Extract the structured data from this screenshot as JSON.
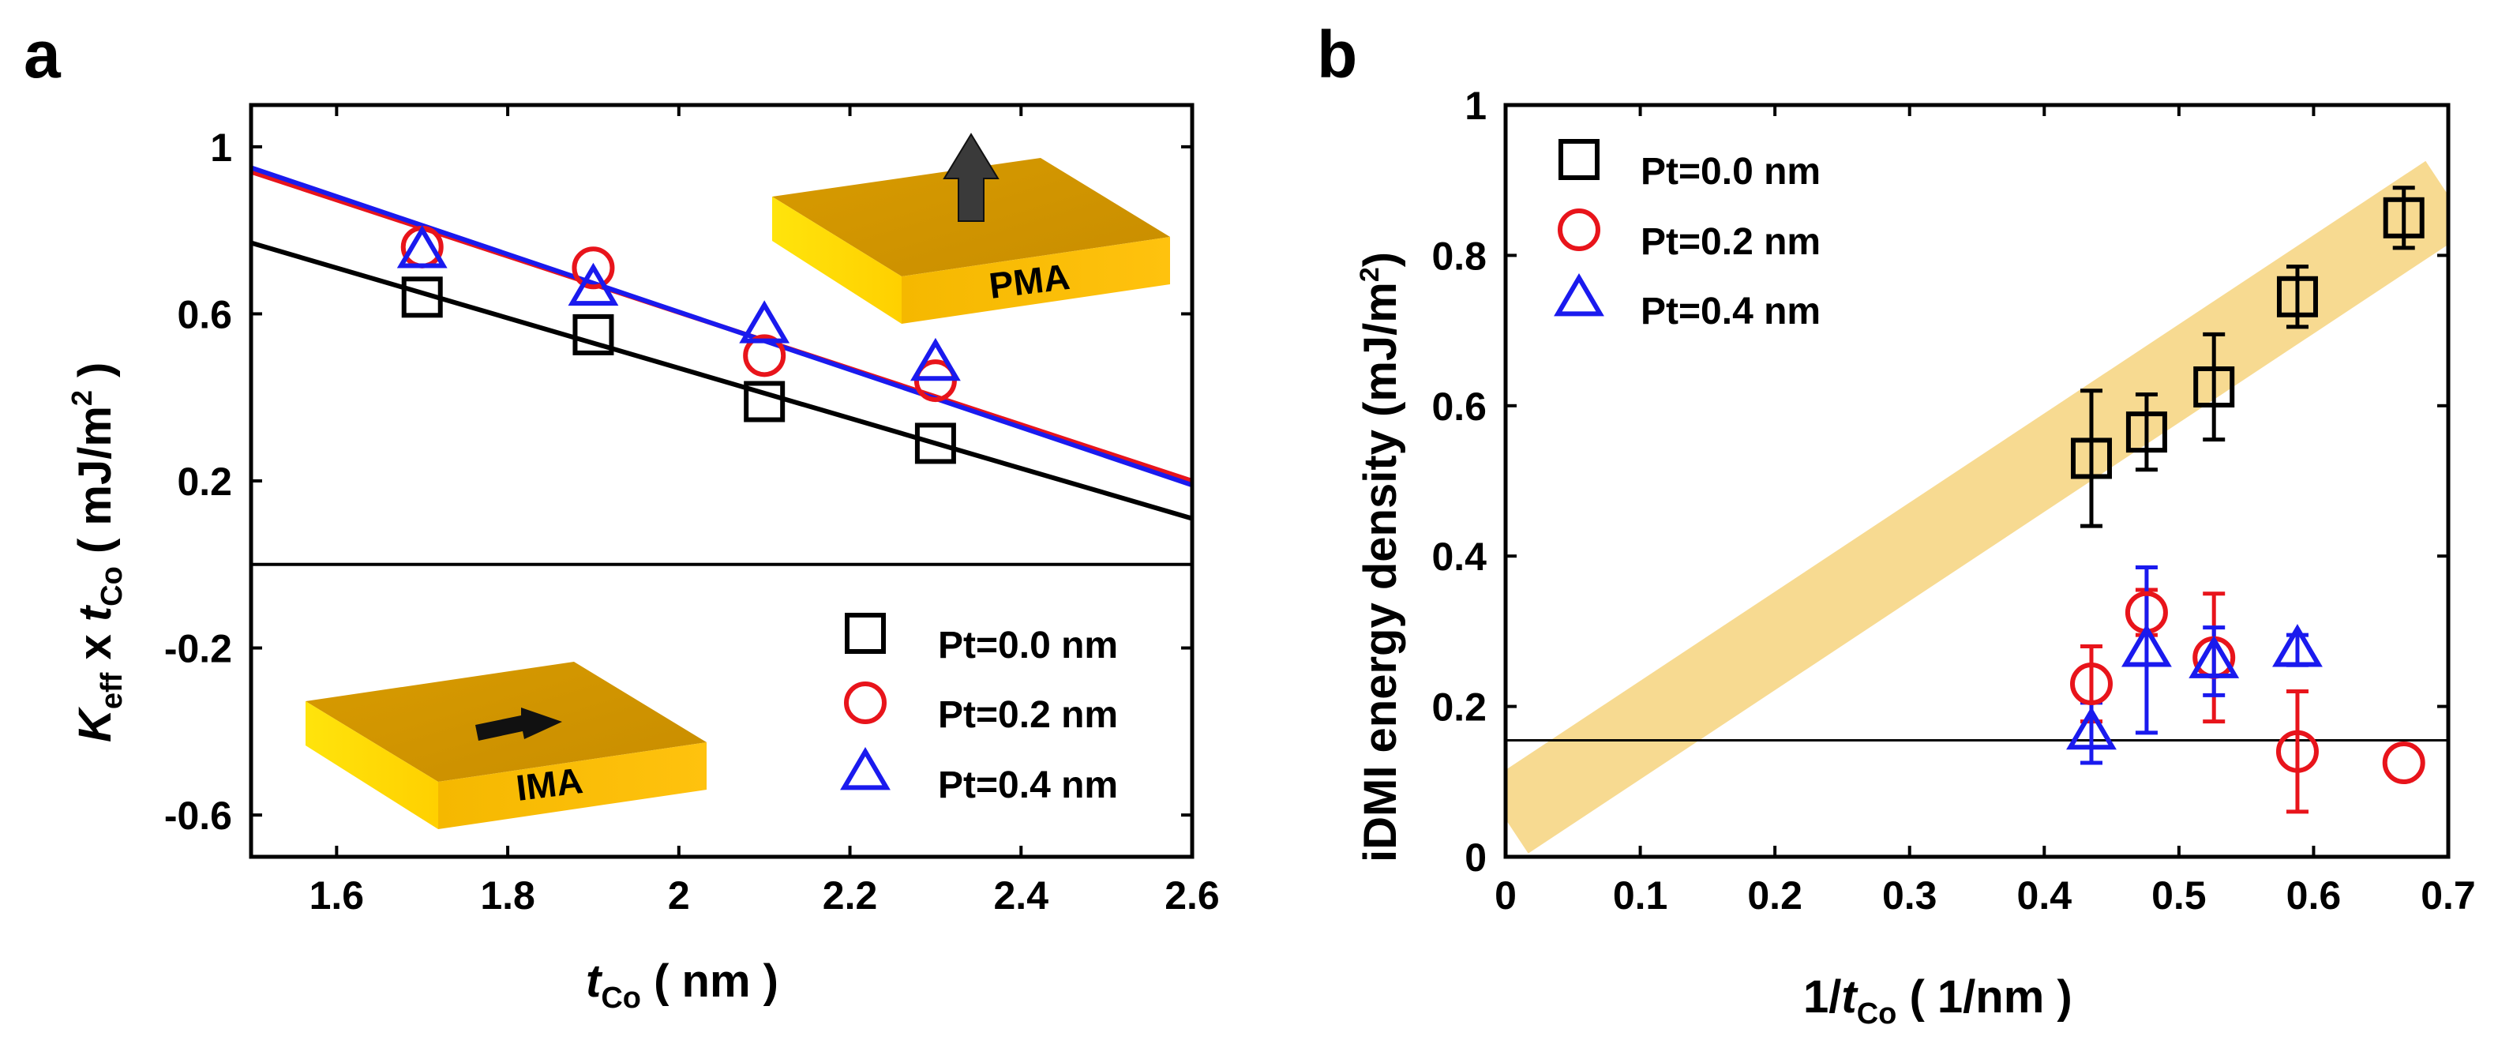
{
  "chart_data": [
    {
      "panel": "a",
      "type": "scatter",
      "title": "",
      "xlabel": {
        "main": "t",
        "sub": "Co",
        "unit": " ( nm )"
      },
      "ylabel": {
        "main": "K",
        "sub1": "eff",
        "mid": " x ",
        "main2": "t",
        "sub2": "Co",
        "unit": " ( mJ/m",
        "sup": "2",
        "end": " )"
      },
      "xlim": [
        1.5,
        2.6
      ],
      "ylim": [
        -0.7,
        1.1
      ],
      "xticks": [
        1.6,
        1.8,
        2.0,
        2.2,
        2.4,
        2.6
      ],
      "xtick_labels": [
        "1.6",
        "1.8",
        "2",
        "2.2",
        "2.4",
        "2.6"
      ],
      "yticks": [
        -0.6,
        -0.2,
        0.2,
        0.6,
        1.0
      ],
      "ytick_labels": [
        "-0.6",
        "-0.2",
        "0.2",
        "0.6",
        "1"
      ],
      "zero_line": 0,
      "legend_position": "bottom-right",
      "series": [
        {
          "name": "Pt=0.0 nm",
          "marker": "square",
          "color": "#000000",
          "x": [
            1.7,
            1.9,
            2.1,
            2.3
          ],
          "y": [
            0.64,
            0.55,
            0.39,
            0.29
          ],
          "fit": [
            [
              1.5,
              0.77
            ],
            [
              2.6,
              0.11
            ]
          ]
        },
        {
          "name": "Pt=0.2 nm",
          "marker": "circle",
          "color": "#e8141b",
          "x": [
            1.7,
            1.9,
            2.1,
            2.3
          ],
          "y": [
            0.76,
            0.71,
            0.5,
            0.44
          ],
          "fit": [
            [
              1.5,
              0.94
            ],
            [
              2.6,
              0.2
            ]
          ]
        },
        {
          "name": "Pt=0.4 nm",
          "marker": "triangle",
          "color": "#1a1aee",
          "x": [
            1.7,
            1.9,
            2.1,
            2.3
          ],
          "y": [
            0.75,
            0.66,
            0.57,
            0.48
          ],
          "fit": [
            [
              1.5,
              0.95
            ],
            [
              2.6,
              0.19
            ]
          ]
        }
      ],
      "insets": {
        "top": "PMA",
        "bottom": "IMA"
      }
    },
    {
      "panel": "b",
      "type": "scatter",
      "title": "",
      "xlabel": {
        "pre": "1/",
        "main": "t",
        "sub": "Co",
        "unit": " ( 1/nm )"
      },
      "ylabel": {
        "text": "iDMI energy density (mJ/m",
        "sup": "2",
        "end": ")"
      },
      "xlim": [
        0,
        0.7
      ],
      "ylim": [
        0,
        1.0
      ],
      "xticks": [
        0,
        0.1,
        0.2,
        0.3,
        0.4,
        0.5,
        0.6,
        0.7
      ],
      "xtick_labels": [
        "0",
        "0.1",
        "0.2",
        "0.3",
        "0.4",
        "0.5",
        "0.6",
        "0.7"
      ],
      "yticks": [
        0,
        0.2,
        0.4,
        0.6,
        0.8,
        1.0
      ],
      "ytick_labels": [
        "0",
        "0.2",
        "0.4",
        "0.6",
        "0.8",
        "1"
      ],
      "hline": 0.155,
      "band": {
        "from": [
          0,
          0.05
        ],
        "to": [
          0.7,
          0.88
        ],
        "color": "#f6d37e"
      },
      "legend_position": "top-left",
      "series": [
        {
          "name": "Pt=0.0 nm",
          "marker": "square",
          "color": "#000000",
          "x": [
            0.435,
            0.476,
            0.526,
            0.588,
            0.667
          ],
          "y": [
            0.53,
            0.565,
            0.625,
            0.745,
            0.85
          ],
          "err": [
            0.09,
            0.05,
            0.07,
            0.04,
            0.04
          ]
        },
        {
          "name": "Pt=0.2 nm",
          "marker": "circle",
          "color": "#e8141b",
          "x": [
            0.435,
            0.476,
            0.526,
            0.588,
            0.667
          ],
          "y": [
            0.23,
            0.325,
            0.265,
            0.14,
            0.125
          ],
          "err": [
            0.05,
            0.03,
            0.085,
            0.08,
            0.0
          ]
        },
        {
          "name": "Pt=0.4 nm",
          "marker": "triangle",
          "color": "#1a1aee",
          "x": [
            0.435,
            0.476,
            0.526,
            0.588
          ],
          "y": [
            0.165,
            0.275,
            0.26,
            0.275
          ],
          "err": [
            0.04,
            0.11,
            0.045,
            0.02
          ]
        }
      ]
    }
  ]
}
